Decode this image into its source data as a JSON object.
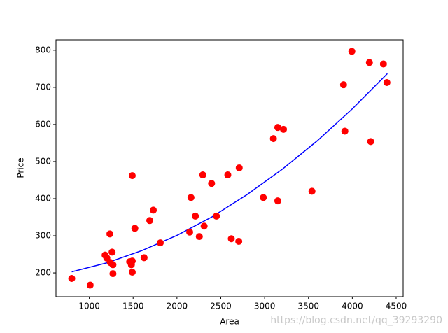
{
  "chart_data": {
    "type": "scatter",
    "x_label": "Area",
    "y_label": "Price",
    "xlim": [
      620,
      4580
    ],
    "ylim": [
      136,
      828
    ],
    "xticks": [
      1000,
      1500,
      2000,
      2500,
      3000,
      3500,
      4000,
      4500
    ],
    "yticks": [
      200,
      300,
      400,
      500,
      600,
      700,
      800
    ],
    "series": [
      {
        "type": "scatter",
        "color": "#ff0000",
        "x": [
          800,
          1010,
          1180,
          1200,
          1235,
          1240,
          1260,
          1270,
          1270,
          1460,
          1480,
          1490,
          1490,
          1490,
          1520,
          1625,
          1690,
          1730,
          1810,
          2145,
          2160,
          2210,
          2255,
          2295,
          2310,
          2395,
          2450,
          2580,
          2620,
          2705,
          2710,
          2985,
          3100,
          3150,
          3150,
          3215,
          3540,
          3900,
          3915,
          3995,
          4195,
          4210,
          4355,
          4395
        ],
        "values": [
          185,
          167,
          248,
          240,
          305,
          228,
          256,
          222,
          198,
          230,
          222,
          232,
          202,
          462,
          320,
          241,
          341,
          369,
          281,
          310,
          403,
          353,
          298,
          464,
          326,
          441,
          353,
          464,
          292,
          285,
          483,
          403,
          562,
          394,
          592,
          587,
          420,
          707,
          582,
          797,
          767,
          554,
          763,
          713
        ]
      },
      {
        "type": "line",
        "color": "#0000ff",
        "x": [
          800,
          1200,
          1600,
          2000,
          2400,
          2800,
          3200,
          3600,
          4000,
          4400
        ],
        "values": [
          203,
          227,
          260,
          301,
          351,
          411,
          479,
          556,
          642,
          737
        ]
      }
    ],
    "watermark": "https://blog.csdn.net/qq_39293290"
  }
}
